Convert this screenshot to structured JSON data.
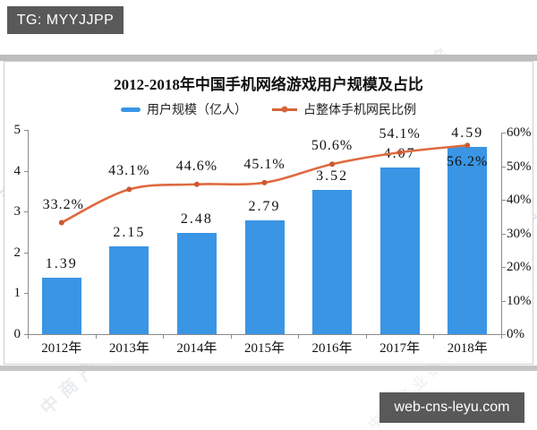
{
  "badges": {
    "top_left": "TG: MYYJJPP",
    "bottom_right": "web-cns-leyu.com",
    "background_color": "#595959"
  },
  "watermark": {
    "text": "中商产业研究院",
    "logo_name": "askci-pie-logo"
  },
  "chart_data": {
    "type": "bar",
    "title": "2012-2018年中国手机网络游戏用户规模及占比",
    "categories": [
      "2012年",
      "2013年",
      "2014年",
      "2015年",
      "2016年",
      "2017年",
      "2018年"
    ],
    "series": [
      {
        "name": "用户规模（亿人）",
        "type": "bar",
        "axis": "left",
        "values": [
          1.39,
          2.15,
          2.48,
          2.79,
          3.52,
          4.07,
          4.59
        ],
        "color": "#3A95E5"
      },
      {
        "name": "占整体手机网民比例",
        "type": "line",
        "axis": "right",
        "unit": "%",
        "values": [
          33.2,
          43.1,
          44.6,
          45.1,
          50.6,
          54.1,
          56.2
        ],
        "color": "#DE6A3F",
        "labels": [
          "33.2%",
          "43.1%",
          "44.6%",
          "45.1%",
          "50.6%",
          "54.1%",
          "56.2%"
        ]
      }
    ],
    "left_axis": {
      "min": 0,
      "max": 5,
      "ticks": [
        "0",
        "1",
        "2",
        "3",
        "4",
        "5"
      ]
    },
    "right_axis": {
      "min": 0,
      "max": 60,
      "ticks": [
        "0%",
        "10%",
        "20%",
        "30%",
        "40%",
        "50%",
        "60%"
      ]
    },
    "legend_position": "top",
    "grid": false
  }
}
